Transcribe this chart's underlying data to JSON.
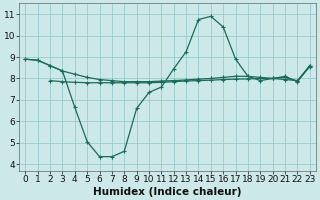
{
  "xlabel": "Humidex (Indice chaleur)",
  "background_color": "#cce8e8",
  "grid_color": "#99cccc",
  "line_color": "#1a6b5a",
  "xlim": [
    -0.5,
    23.5
  ],
  "ylim": [
    3.7,
    11.5
  ],
  "yticks": [
    4,
    5,
    6,
    7,
    8,
    9,
    10,
    11
  ],
  "xticks": [
    0,
    1,
    2,
    3,
    4,
    5,
    6,
    7,
    8,
    9,
    10,
    11,
    12,
    13,
    14,
    15,
    16,
    17,
    18,
    19,
    20,
    21,
    22,
    23
  ],
  "curve_dip_x": [
    0,
    1,
    2,
    3,
    4,
    5,
    6,
    7,
    8,
    9,
    10,
    11,
    12,
    13,
    14,
    15,
    16,
    17,
    18,
    19,
    20,
    21,
    22,
    23
  ],
  "curve_dip_y": [
    8.9,
    8.85,
    8.6,
    8.35,
    6.65,
    5.05,
    4.35,
    4.35,
    4.6,
    6.6,
    7.35,
    7.6,
    8.45,
    9.25,
    10.75,
    10.9,
    10.4,
    8.9,
    8.1,
    7.9,
    8.0,
    8.1,
    7.85,
    8.6
  ],
  "curve_slope_x": [
    0,
    1,
    2,
    3,
    4,
    5,
    6,
    7,
    8,
    9,
    10,
    11,
    12,
    13,
    14,
    15,
    16,
    17,
    18,
    19,
    20,
    21,
    22,
    23
  ],
  "curve_slope_y": [
    8.9,
    8.85,
    8.6,
    8.35,
    8.2,
    8.05,
    7.95,
    7.9,
    7.85,
    7.85,
    7.85,
    7.88,
    7.9,
    7.93,
    7.97,
    8.0,
    8.05,
    8.1,
    8.1,
    8.05,
    8.0,
    7.95,
    7.9,
    8.6
  ],
  "curve_flat_x": [
    2,
    3,
    4,
    5,
    6,
    7,
    8,
    9,
    10,
    11,
    12,
    13,
    14,
    15,
    16,
    17,
    18,
    19,
    20,
    21,
    22,
    23
  ],
  "curve_flat_y": [
    7.9,
    7.85,
    7.82,
    7.8,
    7.8,
    7.8,
    7.8,
    7.8,
    7.8,
    7.82,
    7.85,
    7.88,
    7.9,
    7.92,
    7.95,
    7.97,
    7.98,
    8.0,
    8.0,
    8.05,
    7.88,
    8.55
  ],
  "fontsize_label": 7.5,
  "fontsize_tick": 6.5
}
